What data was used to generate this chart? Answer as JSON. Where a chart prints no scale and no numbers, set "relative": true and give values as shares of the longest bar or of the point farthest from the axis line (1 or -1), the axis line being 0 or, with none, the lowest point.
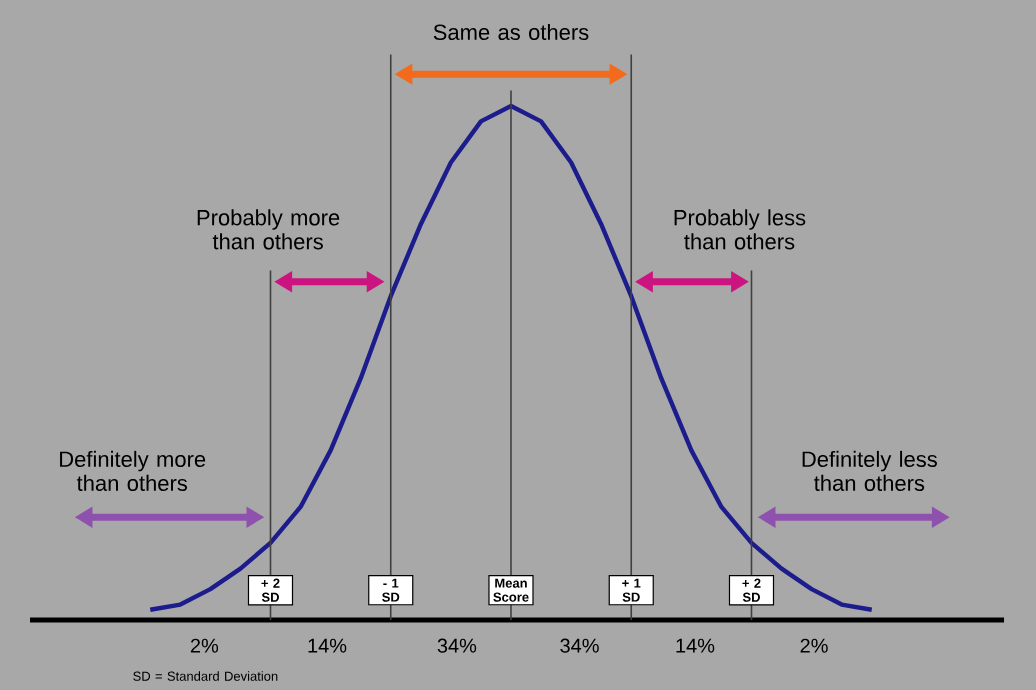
{
  "chart_data": {
    "type": "line",
    "relative": true,
    "categories": [
      null,
      null,
      null,
      null,
      "+ 2 SD",
      null,
      null,
      null,
      "- 1 SD",
      null,
      null,
      null,
      "Mean Score",
      null,
      null,
      null,
      "+ 1 SD",
      null,
      null,
      null,
      "+ 2 SD",
      null,
      null,
      null,
      null
    ],
    "series": [
      {
        "color": "#1c1c8c",
        "values": [
          0.02,
          0.03,
          0.06,
          0.1,
          0.15,
          0.22,
          0.33,
          0.47,
          0.63,
          0.77,
          0.89,
          0.97,
          1,
          0.97,
          0.89,
          0.77,
          0.63,
          0.47,
          0.33,
          0.22,
          0.15,
          0.1,
          0.06,
          0.03,
          0.02
        ]
      }
    ],
    "grid": "x",
    "annotations": [
      "Same as others",
      "Probably more than others",
      "Probably less than others",
      "Definitely more than others",
      "Definitely less than others",
      "2%",
      "14%",
      "34%",
      "34%",
      "14%",
      "2%",
      "SD = Standard Deviation"
    ]
  }
}
